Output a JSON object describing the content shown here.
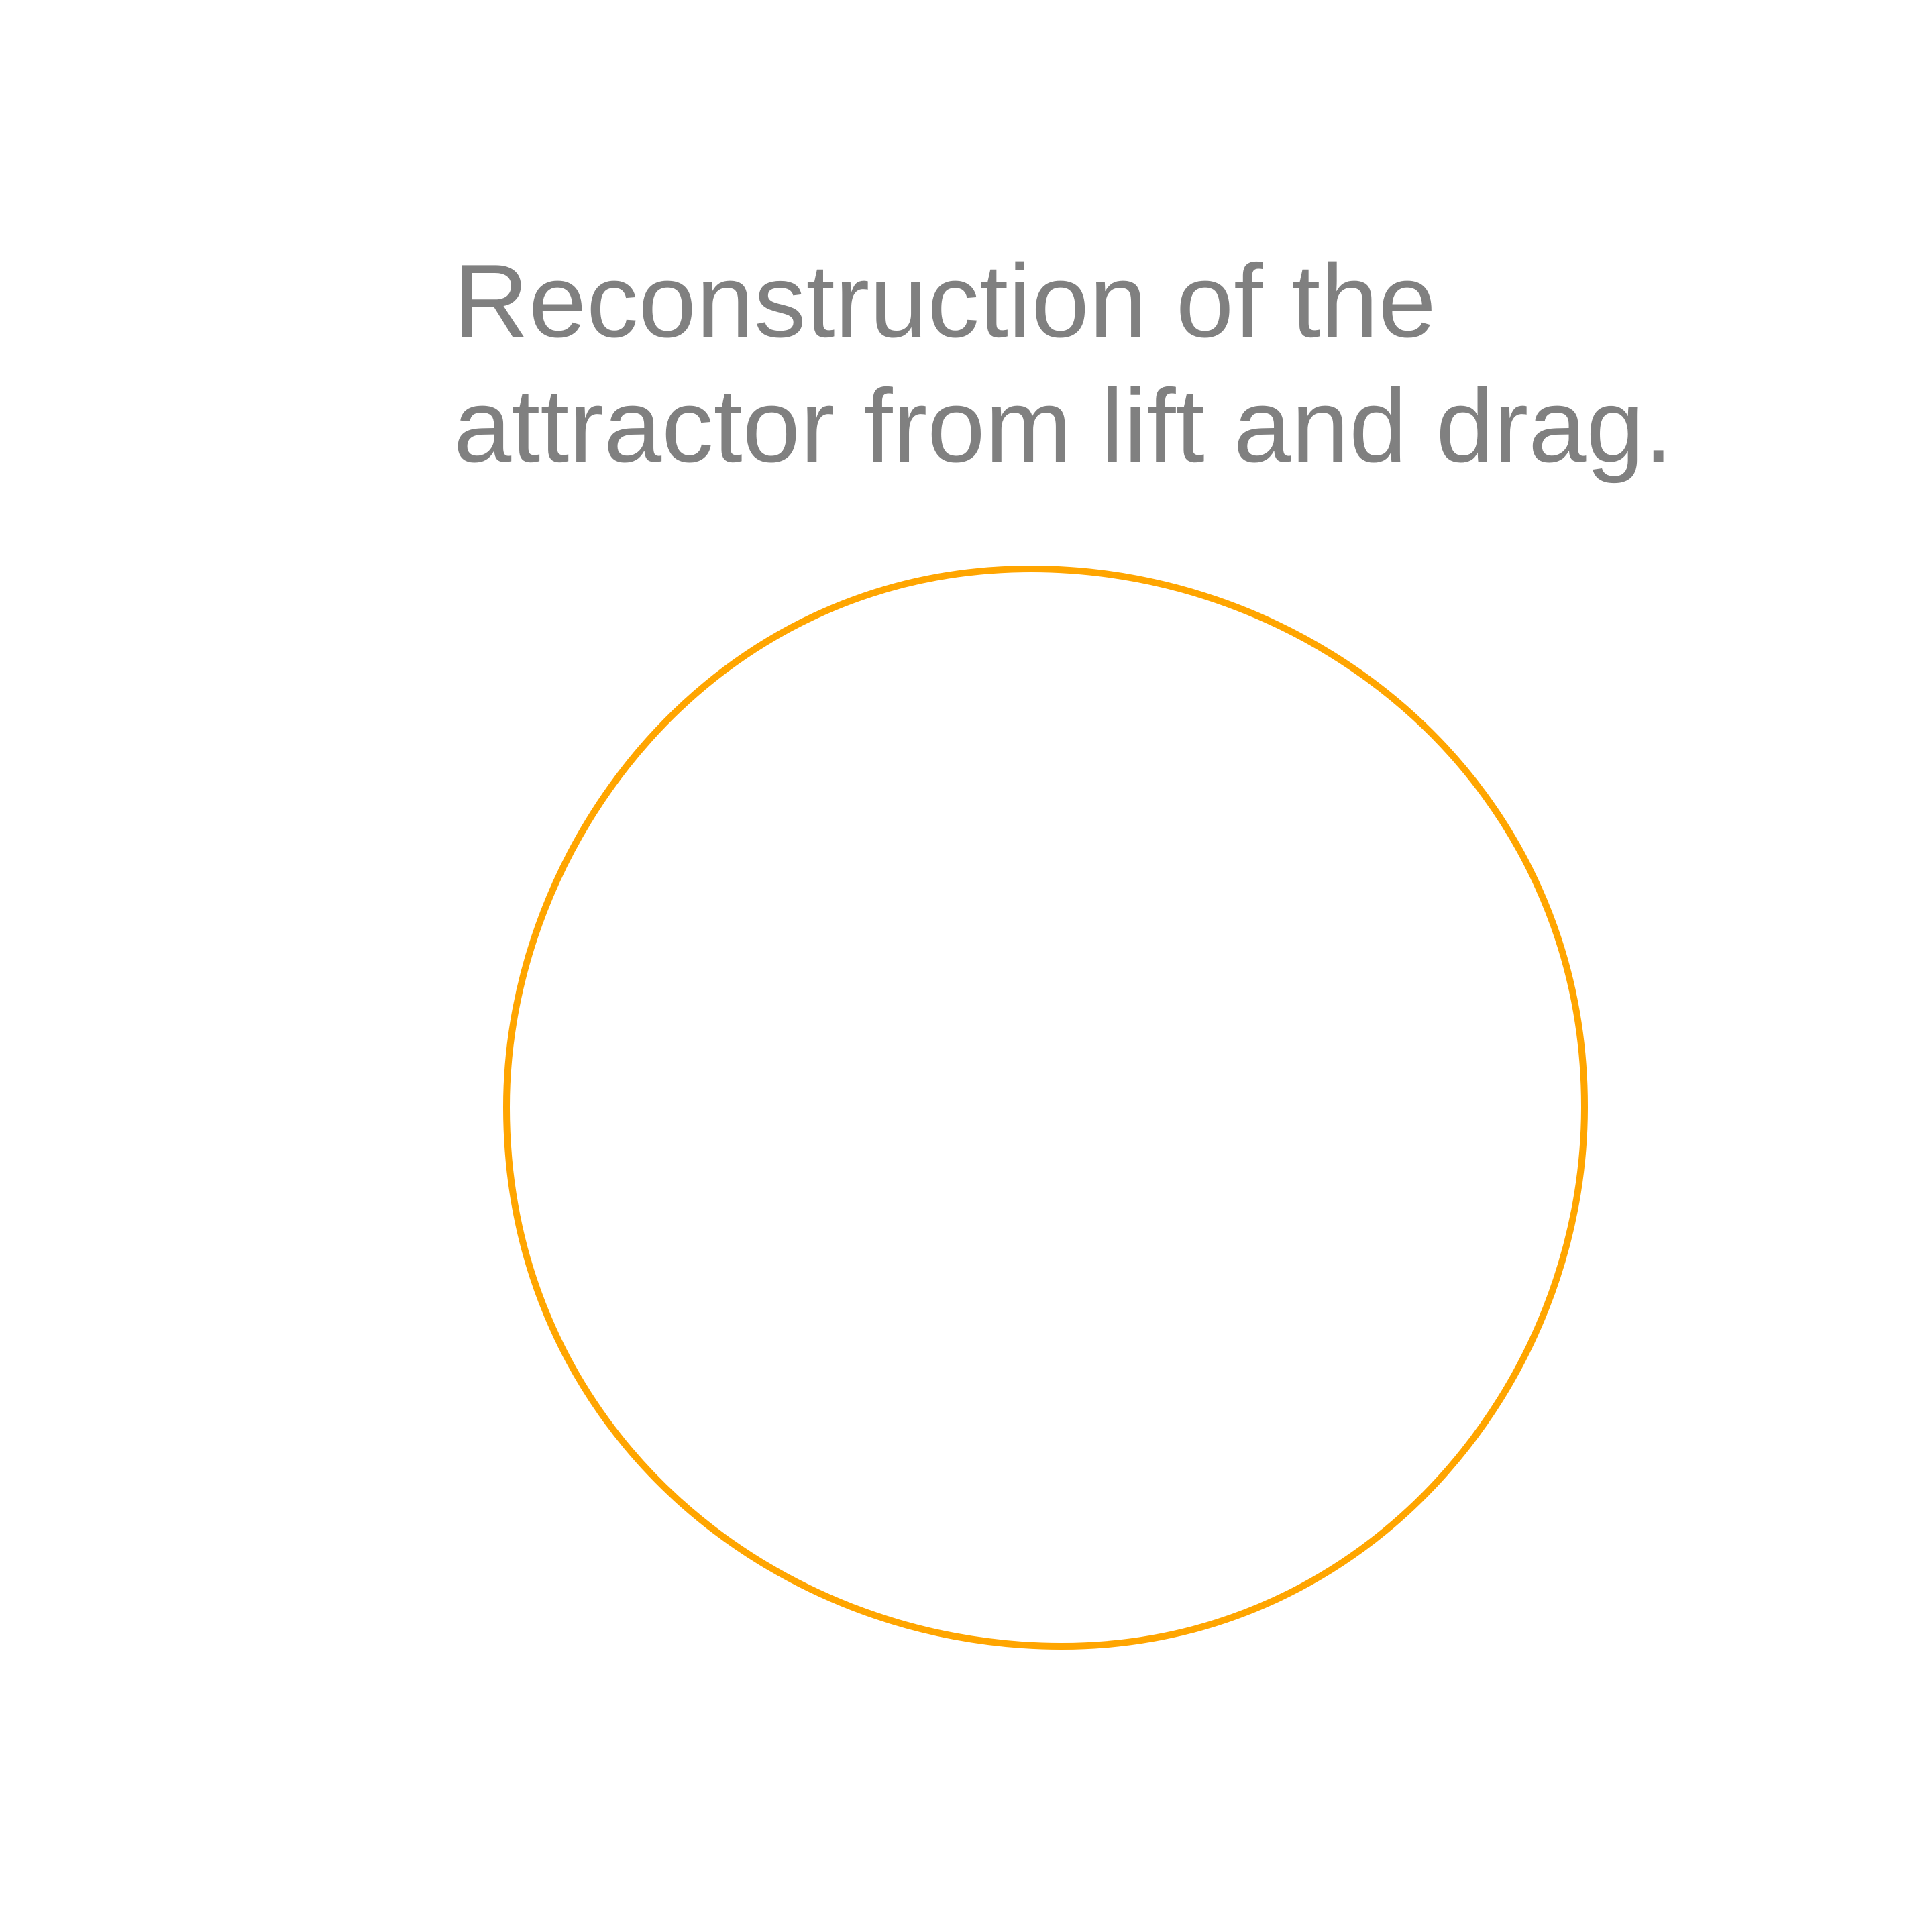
{
  "caption": {
    "line1": "Reconstruction of the",
    "line2": "attractor from lift and drag."
  },
  "figure": {
    "curve_color": "#ffa500",
    "shape": "closed-loop"
  }
}
